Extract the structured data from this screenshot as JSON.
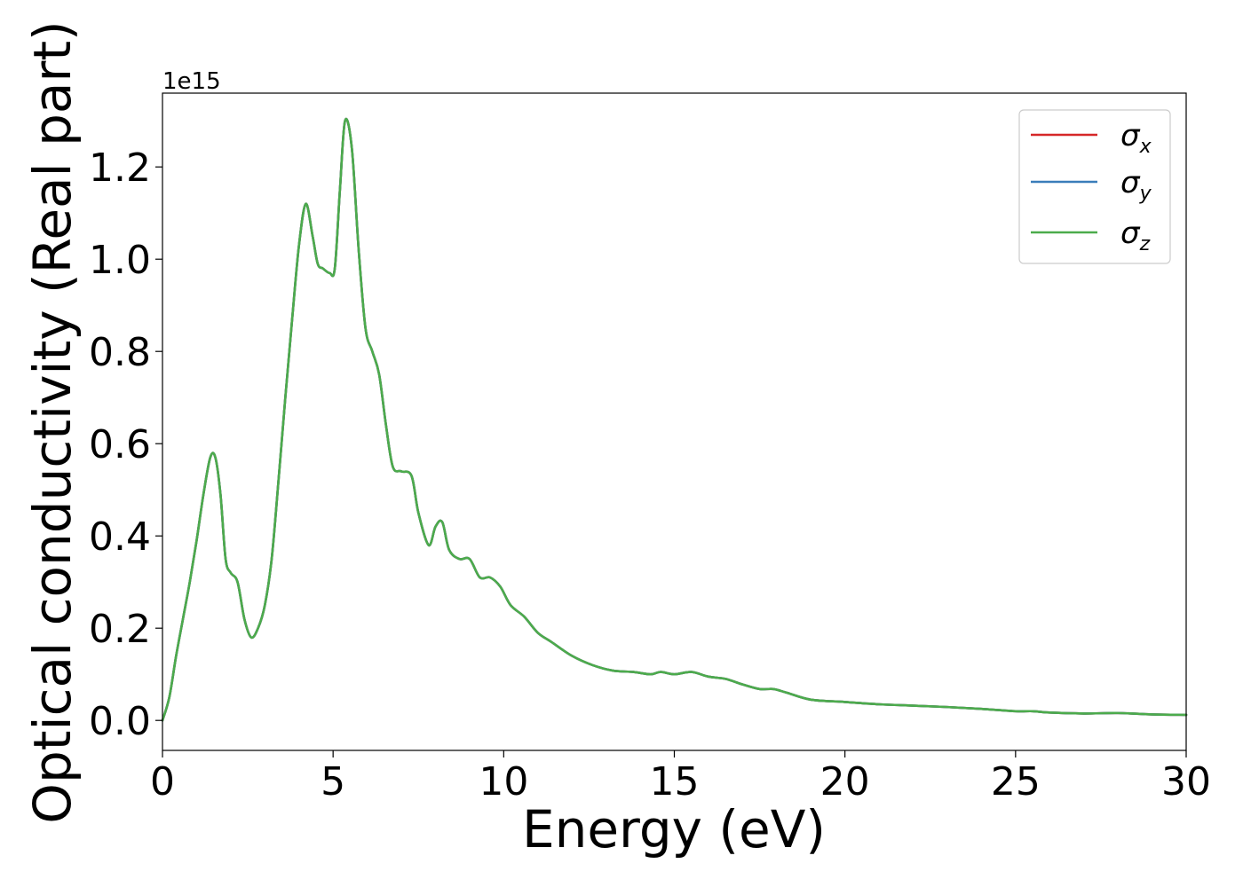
{
  "chart_data": {
    "type": "line",
    "title": "",
    "xlabel": "Energy (eV)",
    "ylabel": "Optical conductivity (Real part)",
    "y_offset_text": "1e15",
    "xlim": [
      0,
      30
    ],
    "ylim": [
      -0.065,
      1.36
    ],
    "xticks": [
      0,
      5,
      10,
      15,
      20,
      25,
      30
    ],
    "xtick_labels": [
      "0",
      "5",
      "10",
      "15",
      "20",
      "25",
      "30"
    ],
    "yticks": [
      0.0,
      0.2,
      0.4,
      0.6,
      0.8,
      1.0,
      1.2
    ],
    "ytick_labels": [
      "0.0",
      "0.2",
      "0.4",
      "0.6",
      "0.8",
      "1.0",
      "1.2"
    ],
    "grid": false,
    "legend_position": "top-right",
    "colors": {
      "sigma_x": "#d62728",
      "sigma_y": "#3a7dba",
      "sigma_z": "#4cab4c"
    },
    "x": [
      0,
      0.2,
      0.4,
      0.6,
      0.8,
      1.0,
      1.2,
      1.4,
      1.55,
      1.7,
      1.85,
      2.0,
      2.2,
      2.4,
      2.6,
      2.8,
      3.0,
      3.2,
      3.4,
      3.6,
      3.8,
      4.0,
      4.2,
      4.4,
      4.55,
      4.7,
      4.9,
      5.05,
      5.2,
      5.35,
      5.55,
      5.75,
      5.95,
      6.15,
      6.35,
      6.55,
      6.75,
      7.0,
      7.3,
      7.5,
      7.8,
      8.0,
      8.2,
      8.4,
      8.7,
      9.0,
      9.3,
      9.6,
      9.9,
      10.2,
      10.6,
      11.0,
      11.4,
      12.0,
      12.6,
      13.2,
      13.8,
      14.3,
      14.6,
      15.0,
      15.5,
      16.0,
      16.5,
      17.0,
      17.5,
      17.9,
      18.3,
      19.0,
      20.0,
      21.0,
      22.0,
      23.0,
      24.0,
      25.0,
      25.5,
      26.0,
      27.0,
      28.0,
      29.0,
      30.0
    ],
    "series": [
      {
        "name": "σx",
        "values": [
          0.0,
          0.05,
          0.14,
          0.22,
          0.3,
          0.39,
          0.49,
          0.57,
          0.57,
          0.49,
          0.35,
          0.32,
          0.3,
          0.22,
          0.18,
          0.2,
          0.25,
          0.35,
          0.52,
          0.7,
          0.87,
          1.03,
          1.12,
          1.05,
          0.99,
          0.98,
          0.97,
          0.98,
          1.15,
          1.3,
          1.24,
          1.02,
          0.85,
          0.8,
          0.75,
          0.64,
          0.55,
          0.54,
          0.53,
          0.45,
          0.38,
          0.42,
          0.43,
          0.37,
          0.35,
          0.35,
          0.31,
          0.31,
          0.29,
          0.25,
          0.225,
          0.19,
          0.17,
          0.14,
          0.12,
          0.108,
          0.105,
          0.1,
          0.105,
          0.1,
          0.105,
          0.095,
          0.09,
          0.078,
          0.068,
          0.068,
          0.06,
          0.045,
          0.04,
          0.035,
          0.032,
          0.029,
          0.025,
          0.02,
          0.02,
          0.017,
          0.015,
          0.016,
          0.013,
          0.012
        ]
      },
      {
        "name": "σy",
        "values": [
          0.0,
          0.05,
          0.14,
          0.22,
          0.3,
          0.39,
          0.49,
          0.57,
          0.57,
          0.49,
          0.35,
          0.32,
          0.3,
          0.22,
          0.18,
          0.2,
          0.25,
          0.35,
          0.52,
          0.7,
          0.87,
          1.03,
          1.12,
          1.05,
          0.99,
          0.98,
          0.97,
          0.98,
          1.15,
          1.3,
          1.24,
          1.02,
          0.85,
          0.8,
          0.75,
          0.64,
          0.55,
          0.54,
          0.53,
          0.45,
          0.38,
          0.42,
          0.43,
          0.37,
          0.35,
          0.35,
          0.31,
          0.31,
          0.29,
          0.25,
          0.225,
          0.19,
          0.17,
          0.14,
          0.12,
          0.108,
          0.105,
          0.1,
          0.105,
          0.1,
          0.105,
          0.095,
          0.09,
          0.078,
          0.068,
          0.068,
          0.06,
          0.045,
          0.04,
          0.035,
          0.032,
          0.029,
          0.025,
          0.02,
          0.02,
          0.017,
          0.015,
          0.016,
          0.013,
          0.012
        ]
      },
      {
        "name": "σz",
        "values": [
          0.0,
          0.05,
          0.14,
          0.22,
          0.3,
          0.39,
          0.49,
          0.57,
          0.57,
          0.49,
          0.35,
          0.32,
          0.3,
          0.22,
          0.18,
          0.2,
          0.25,
          0.35,
          0.52,
          0.7,
          0.87,
          1.03,
          1.12,
          1.05,
          0.99,
          0.98,
          0.97,
          0.98,
          1.15,
          1.3,
          1.24,
          1.02,
          0.85,
          0.8,
          0.75,
          0.64,
          0.55,
          0.54,
          0.53,
          0.45,
          0.38,
          0.42,
          0.43,
          0.37,
          0.35,
          0.35,
          0.31,
          0.31,
          0.29,
          0.25,
          0.225,
          0.19,
          0.17,
          0.14,
          0.12,
          0.108,
          0.105,
          0.1,
          0.105,
          0.1,
          0.105,
          0.095,
          0.09,
          0.078,
          0.068,
          0.068,
          0.06,
          0.045,
          0.04,
          0.035,
          0.032,
          0.029,
          0.025,
          0.02,
          0.02,
          0.017,
          0.015,
          0.016,
          0.013,
          0.012
        ]
      }
    ]
  }
}
